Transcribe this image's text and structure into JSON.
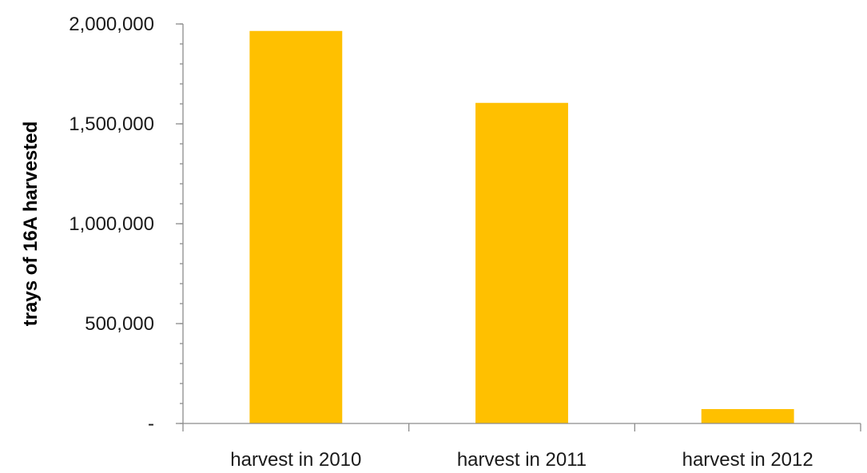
{
  "chart_data": {
    "type": "bar",
    "categories": [
      "harvest in 2010",
      "harvest in 2011",
      "harvest in 2012"
    ],
    "values": [
      1965000,
      1605000,
      72000
    ],
    "title": "",
    "xlabel": "",
    "ylabel": "trays of 16A harvested",
    "ylim": [
      0,
      2000000
    ],
    "yticks": [
      0,
      500000,
      1000000,
      1500000,
      2000000
    ],
    "ytick_labels": [
      "-",
      "500,000",
      "1,000,000",
      "1,500,000",
      "2,000,000"
    ],
    "grid": false,
    "legend": "none",
    "colors": {
      "bar": "#FFC000",
      "axis": "#8C8C8C",
      "text": "#1A1A1A"
    }
  }
}
